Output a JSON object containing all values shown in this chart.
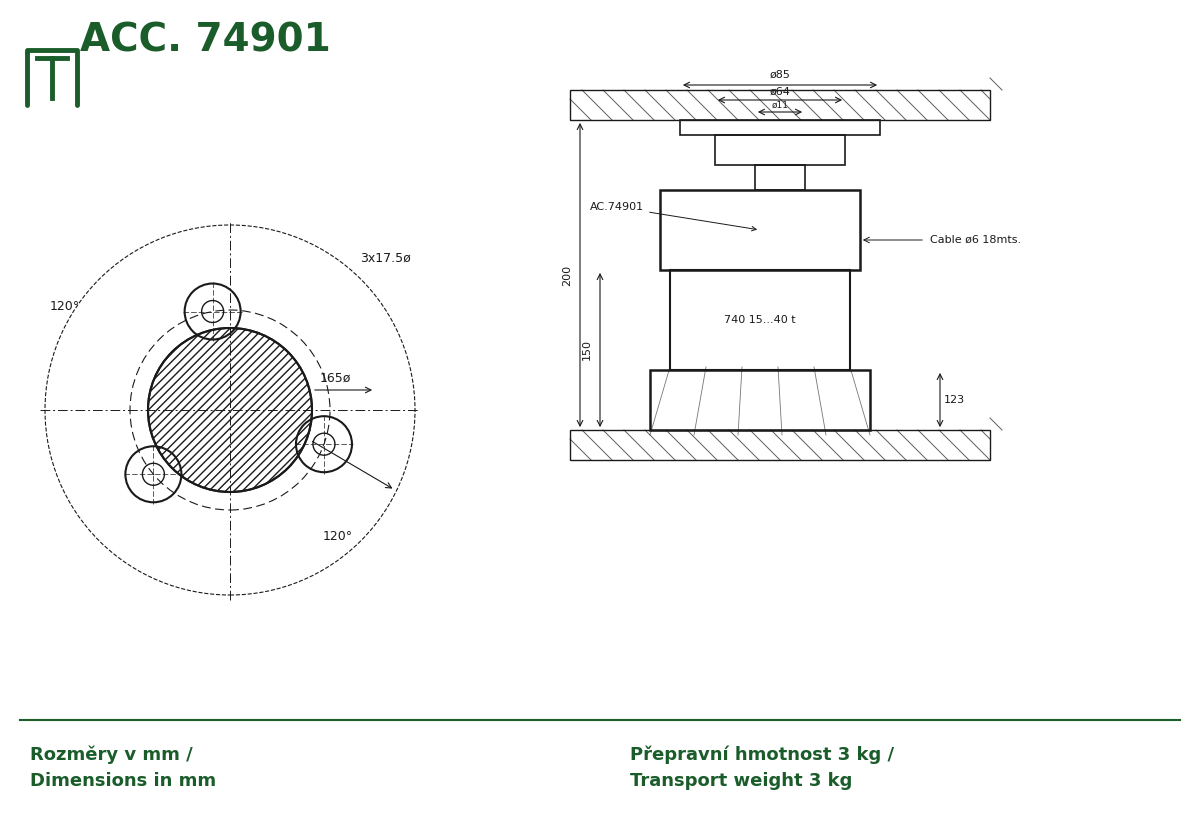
{
  "title": "ACC. 74901",
  "logo_color": "#1a5c2a",
  "line_color": "#1a1a1a",
  "dark_green": "#1a5c2a",
  "bg_color": "#ffffff",
  "bottom_left_text": "Rozměry v mm /\nDimensions in mm",
  "bottom_right_text": "Přepravní hmotnost 3 kg /\nTransport weight 3 kg",
  "label_3x17": "3x17.5ø",
  "label_165": "165ø",
  "label_120a": "120°",
  "label_120b": "120°",
  "label_85": "ø85",
  "label_64": "ø64",
  "label_11": "ø11",
  "label_200": "200",
  "label_150": "150",
  "label_123": "123",
  "label_cable": "Cable ø6 18mts.",
  "label_ac74901": "AC.74901",
  "label_740": "740 15...40 t",
  "font_size_title": 28,
  "font_size_labels": 10
}
